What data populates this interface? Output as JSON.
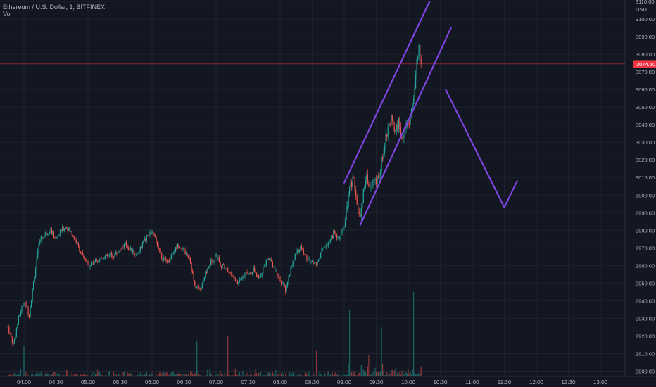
{
  "header": {
    "title": "Ethereum / U.S. Dollar, 1, BITFINEX",
    "indicator": "Vol"
  },
  "colors": {
    "background": "#131722",
    "grid": "#1e2230",
    "up": "#26a69a",
    "down": "#ef5350",
    "axis_text": "#b2b5be",
    "annotation": "#7e44e0",
    "price_line": "#f23645",
    "price_label_bg": "#f23645"
  },
  "chart_data": {
    "type": "candlestick",
    "symbol": "Ethereum / U.S. Dollar, 1, BITFINEX",
    "interval": "1 minute",
    "y_unit": "USD",
    "ylim": [
      2897,
      3110
    ],
    "y_ticks": [
      "3110.00",
      "3100.00",
      "3090.00",
      "3080.00",
      "3070.00",
      "3060.00",
      "3050.00",
      "3040.00",
      "3030.00",
      "3020.00",
      "3010.00",
      "3000.00",
      "2990.00",
      "2980.00",
      "2970.00",
      "2960.00",
      "2950.00",
      "2940.00",
      "2930.00",
      "2920.00",
      "2910.00",
      "2900.00"
    ],
    "x_ticks": [
      "04:00",
      "04:30",
      "05:00",
      "05:30",
      "06:00",
      "06:30",
      "07:00",
      "07:30",
      "08:00",
      "08:30",
      "09:00",
      "09:30",
      "10:00",
      "10:30",
      "11:00",
      "11:30",
      "12:00",
      "12:30",
      "13:00"
    ],
    "last_price": "3074.50",
    "grid": true,
    "volume_pane": true,
    "price_keypoints": [
      [
        "03:45",
        2925
      ],
      [
        "03:50",
        2915
      ],
      [
        "03:55",
        2930
      ],
      [
        "04:00",
        2940
      ],
      [
        "04:05",
        2932
      ],
      [
        "04:10",
        2955
      ],
      [
        "04:15",
        2975
      ],
      [
        "04:20",
        2978
      ],
      [
        "04:25",
        2980
      ],
      [
        "04:30",
        2975
      ],
      [
        "04:35",
        2980
      ],
      [
        "04:40",
        2982
      ],
      [
        "04:45",
        2978
      ],
      [
        "04:50",
        2972
      ],
      [
        "04:55",
        2965
      ],
      [
        "05:00",
        2960
      ],
      [
        "05:05",
        2962
      ],
      [
        "05:15",
        2965
      ],
      [
        "05:25",
        2966
      ],
      [
        "05:35",
        2972
      ],
      [
        "05:45",
        2966
      ],
      [
        "05:55",
        2976
      ],
      [
        "06:00",
        2979
      ],
      [
        "06:05",
        2972
      ],
      [
        "06:10",
        2964
      ],
      [
        "06:15",
        2962
      ],
      [
        "06:20",
        2968
      ],
      [
        "06:25",
        2972
      ],
      [
        "06:30",
        2968
      ],
      [
        "06:35",
        2965
      ],
      [
        "06:40",
        2948
      ],
      [
        "06:45",
        2947
      ],
      [
        "06:50",
        2955
      ],
      [
        "06:55",
        2962
      ],
      [
        "07:00",
        2966
      ],
      [
        "07:05",
        2960
      ],
      [
        "07:10",
        2958
      ],
      [
        "07:15",
        2954
      ],
      [
        "07:20",
        2950
      ],
      [
        "07:25",
        2955
      ],
      [
        "07:30",
        2955
      ],
      [
        "07:35",
        2958
      ],
      [
        "07:40",
        2952
      ],
      [
        "07:45",
        2960
      ],
      [
        "07:50",
        2965
      ],
      [
        "07:55",
        2958
      ],
      [
        "08:00",
        2952
      ],
      [
        "08:05",
        2946
      ],
      [
        "08:10",
        2958
      ],
      [
        "08:15",
        2968
      ],
      [
        "08:20",
        2970
      ],
      [
        "08:25",
        2964
      ],
      [
        "08:30",
        2962
      ],
      [
        "08:35",
        2961
      ],
      [
        "08:40",
        2970
      ],
      [
        "08:45",
        2973
      ],
      [
        "08:50",
        2978
      ],
      [
        "08:55",
        2975
      ],
      [
        "09:00",
        2982
      ],
      [
        "09:03",
        2995
      ],
      [
        "09:06",
        3005
      ],
      [
        "09:09",
        3010
      ],
      [
        "09:12",
        2992
      ],
      [
        "09:15",
        2988
      ],
      [
        "09:18",
        3002
      ],
      [
        "09:21",
        3009
      ],
      [
        "09:24",
        3004
      ],
      [
        "09:27",
        3008
      ],
      [
        "09:30",
        3006
      ],
      [
        "09:33",
        3012
      ],
      [
        "09:36",
        3022
      ],
      [
        "09:39",
        3032
      ],
      [
        "09:42",
        3040
      ],
      [
        "09:45",
        3044
      ],
      [
        "09:48",
        3036
      ],
      [
        "09:51",
        3041
      ],
      [
        "09:54",
        3033
      ],
      [
        "09:57",
        3038
      ],
      [
        "10:00",
        3040
      ],
      [
        "10:03",
        3048
      ],
      [
        "10:06",
        3060
      ],
      [
        "10:08",
        3075
      ],
      [
        "10:10",
        3083
      ],
      [
        "10:12",
        3074.5
      ]
    ],
    "annotations": [
      {
        "type": "line",
        "name": "channel upper boundary",
        "points": [
          [
            "09:00",
            3007
          ],
          [
            "10:20",
            3110
          ]
        ]
      },
      {
        "type": "line",
        "name": "channel lower boundary",
        "points": [
          [
            "09:15",
            2983
          ],
          [
            "10:40",
            3095
          ]
        ]
      },
      {
        "type": "arrow",
        "name": "projected move",
        "points": [
          [
            "10:35",
            3060
          ],
          [
            "11:30",
            2993
          ],
          [
            "11:42",
            3008
          ]
        ]
      }
    ]
  }
}
